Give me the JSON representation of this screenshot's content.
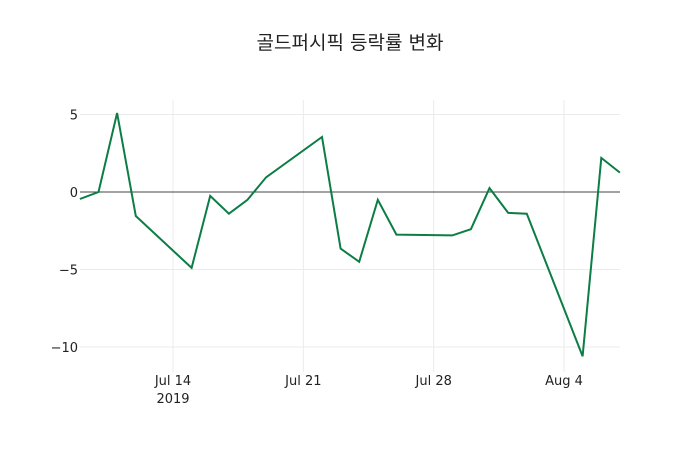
{
  "chart_data": {
    "type": "line",
    "title": "골드퍼시픽 등락률 변화",
    "xlabel": "",
    "ylabel": "",
    "x": [
      "2019-07-09",
      "2019-07-10",
      "2019-07-11",
      "2019-07-12",
      "2019-07-15",
      "2019-07-16",
      "2019-07-17",
      "2019-07-18",
      "2019-07-19",
      "2019-07-22",
      "2019-07-23",
      "2019-07-24",
      "2019-07-25",
      "2019-07-26",
      "2019-07-29",
      "2019-07-30",
      "2019-07-31",
      "2019-08-01",
      "2019-08-02",
      "2019-08-05",
      "2019-08-06",
      "2019-08-07"
    ],
    "series": [
      {
        "name": "등락률",
        "color": "#0b7d45",
        "values": [
          -0.45,
          0.0,
          5.1,
          -1.55,
          -4.9,
          -0.25,
          -1.4,
          -0.5,
          0.95,
          3.55,
          -3.65,
          -4.5,
          -0.5,
          -2.75,
          -2.8,
          -2.4,
          0.25,
          -1.35,
          -1.4,
          -10.6,
          2.2,
          1.25
        ]
      }
    ],
    "x_ticks": [
      {
        "date": "2019-07-14",
        "label": "Jul 14",
        "sublabel": "2019"
      },
      {
        "date": "2019-07-21",
        "label": "Jul 21",
        "sublabel": ""
      },
      {
        "date": "2019-07-28",
        "label": "Jul 28",
        "sublabel": ""
      },
      {
        "date": "2019-08-04",
        "label": "Aug 4",
        "sublabel": ""
      }
    ],
    "y_ticks": [
      5,
      0,
      -5,
      -10
    ],
    "y_tick_labels": [
      "5",
      "0",
      "−5",
      "−10"
    ],
    "ylim": [
      -11.5,
      6.2
    ],
    "grid": true,
    "zero_line": true,
    "legend": "none"
  }
}
